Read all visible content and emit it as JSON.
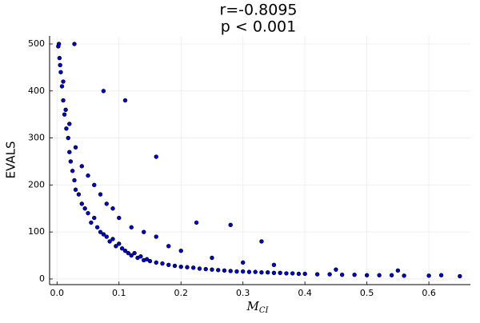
{
  "chart_data": {
    "type": "scatter",
    "title_lines": [
      "r=-0.8095",
      "p < 0.001"
    ],
    "xlabel": {
      "main": "M",
      "sub": "CI"
    },
    "ylabel": "EVALS",
    "xlim": [
      -0.012,
      0.667
    ],
    "ylim": [
      -12,
      517
    ],
    "xticks": [
      {
        "value": 0,
        "label": "0.0"
      },
      0.1,
      0.2,
      0.3,
      0.4,
      0.5,
      0.6
    ],
    "yticks": [
      0,
      100,
      200,
      300,
      400,
      500
    ],
    "grid": true,
    "color": "#0000cc",
    "x": [
      0.002,
      0.004,
      0.006,
      0.008,
      0.01,
      0.003,
      0.005,
      0.012,
      0.015,
      0.018,
      0.02,
      0.022,
      0.025,
      0.028,
      0.03,
      0.01,
      0.014,
      0.02,
      0.035,
      0.04,
      0.045,
      0.05,
      0.055,
      0.06,
      0.065,
      0.07,
      0.075,
      0.08,
      0.085,
      0.09,
      0.095,
      0.1,
      0.105,
      0.11,
      0.115,
      0.12,
      0.125,
      0.13,
      0.135,
      0.14,
      0.145,
      0.15,
      0.16,
      0.17,
      0.18,
      0.19,
      0.2,
      0.21,
      0.22,
      0.23,
      0.24,
      0.25,
      0.26,
      0.27,
      0.28,
      0.29,
      0.3,
      0.31,
      0.32,
      0.33,
      0.34,
      0.35,
      0.36,
      0.37,
      0.38,
      0.39,
      0.4,
      0.42,
      0.44,
      0.46,
      0.48,
      0.5,
      0.52,
      0.54,
      0.56,
      0.6,
      0.62,
      0.65,
      0.03,
      0.04,
      0.05,
      0.06,
      0.07,
      0.08,
      0.09,
      0.1,
      0.12,
      0.14,
      0.16,
      0.18,
      0.2,
      0.25,
      0.3,
      0.35,
      0.028,
      0.075,
      0.11,
      0.16,
      0.225,
      0.28,
      0.33,
      0.45,
      0.55
    ],
    "y": [
      495,
      470,
      440,
      410,
      380,
      500,
      455,
      350,
      320,
      300,
      270,
      250,
      230,
      210,
      190,
      420,
      360,
      330,
      180,
      160,
      150,
      140,
      120,
      130,
      110,
      100,
      95,
      90,
      80,
      85,
      70,
      75,
      65,
      60,
      55,
      50,
      55,
      45,
      48,
      40,
      42,
      38,
      35,
      33,
      30,
      28,
      26,
      25,
      24,
      22,
      21,
      20,
      19,
      18,
      17,
      16,
      16,
      15,
      15,
      14,
      14,
      13,
      13,
      12,
      12,
      11,
      11,
      10,
      10,
      9,
      9,
      8,
      8,
      8,
      7,
      7,
      8,
      6,
      280,
      240,
      220,
      200,
      180,
      160,
      150,
      130,
      110,
      100,
      90,
      70,
      60,
      45,
      35,
      30,
      500,
      400,
      380,
      260,
      120,
      115,
      80,
      20,
      18
    ]
  }
}
